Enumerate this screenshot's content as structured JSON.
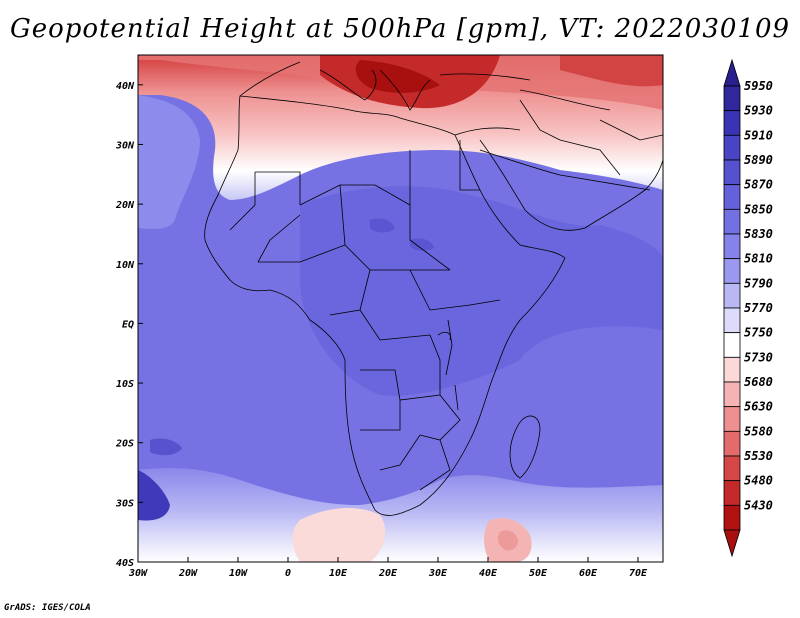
{
  "title": "Geopotential Height at 500hPa [gpm], VT: 2022030109",
  "credit": "GrADS: IGES/COLA",
  "map": {
    "lon_range": [
      -30,
      75
    ],
    "lat_range": [
      -40,
      45
    ],
    "lon_ticks": [
      {
        "value": -30,
        "label": "30W"
      },
      {
        "value": -20,
        "label": "20W"
      },
      {
        "value": -10,
        "label": "10W"
      },
      {
        "value": 0,
        "label": "0"
      },
      {
        "value": 10,
        "label": "10E"
      },
      {
        "value": 20,
        "label": "20E"
      },
      {
        "value": 30,
        "label": "30E"
      },
      {
        "value": 40,
        "label": "40E"
      },
      {
        "value": 50,
        "label": "50E"
      },
      {
        "value": 60,
        "label": "60E"
      },
      {
        "value": 70,
        "label": "70E"
      }
    ],
    "lat_ticks": [
      {
        "value": 40,
        "label": "40N"
      },
      {
        "value": 30,
        "label": "30N"
      },
      {
        "value": 20,
        "label": "20N"
      },
      {
        "value": 10,
        "label": "10N"
      },
      {
        "value": 0,
        "label": "EQ"
      },
      {
        "value": -10,
        "label": "10S"
      },
      {
        "value": -20,
        "label": "20S"
      },
      {
        "value": -30,
        "label": "30S"
      },
      {
        "value": -40,
        "label": "40S"
      }
    ]
  },
  "colorbar": {
    "levels": [
      "5950",
      "5930",
      "5910",
      "5890",
      "5870",
      "5850",
      "5830",
      "5810",
      "5790",
      "5770",
      "5750",
      "5730",
      "5680",
      "5630",
      "5580",
      "5530",
      "5480",
      "5430"
    ],
    "colors": [
      "#2f279b",
      "#3a34b4",
      "#4844c4",
      "#5651cf",
      "#6461da",
      "#7370e2",
      "#8582e9",
      "#9b99ef",
      "#b9b8f5",
      "#dcdcfa",
      "#ffffff",
      "#fcd8d8",
      "#f6b3b3",
      "#ef9090",
      "#e46b6b",
      "#d64848",
      "#c42a2a",
      "#b01212"
    ],
    "top_arrow_color": "#2a1f8f",
    "bottom_arrow_color": "#a80f0f"
  }
}
